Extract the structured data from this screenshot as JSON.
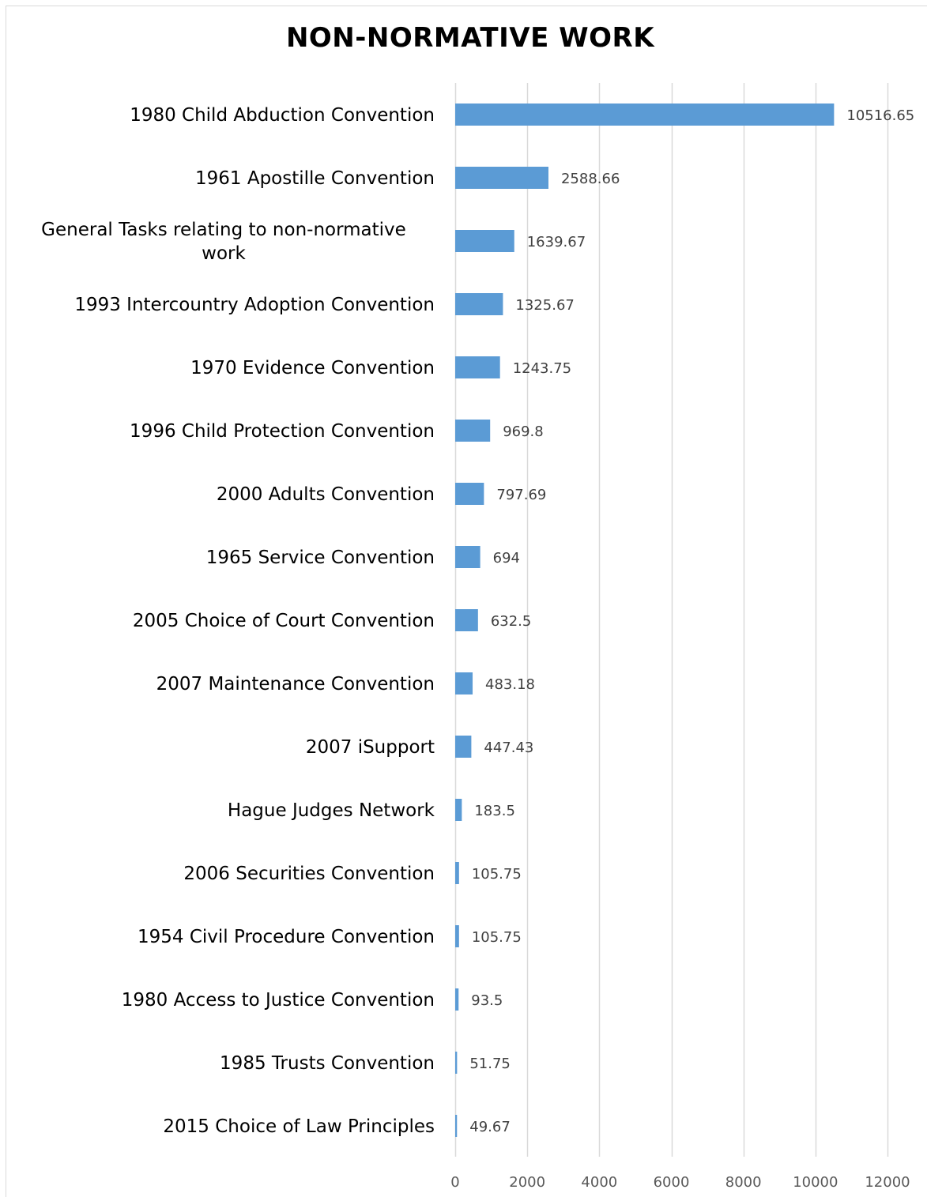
{
  "chart_data": {
    "type": "bar",
    "orientation": "horizontal",
    "title": "NON-NORMATIVE WORK",
    "categories": [
      "1980 Child Abduction Convention",
      "1961 Apostille Convention",
      "General Tasks relating to non-normative work",
      "1993 Intercountry Adoption Convention",
      "1970 Evidence Convention",
      "1996 Child Protection Convention",
      "2000 Adults Convention",
      "1965 Service Convention",
      "2005 Choice of Court Convention",
      "2007 Maintenance Convention",
      "2007 iSupport",
      "Hague Judges Network",
      "2006 Securities Convention",
      "1954 Civil Procedure Convention",
      "1980 Access to Justice Convention",
      "1985 Trusts Convention",
      "2015 Choice of Law Principles"
    ],
    "category_lines": [
      [
        "1980 Child Abduction Convention"
      ],
      [
        "1961 Apostille Convention"
      ],
      [
        "General Tasks relating to non-normative",
        "work"
      ],
      [
        "1993 Intercountry Adoption Convention"
      ],
      [
        "1970 Evidence Convention"
      ],
      [
        "1996 Child Protection Convention"
      ],
      [
        "2000 Adults Convention"
      ],
      [
        "1965 Service Convention"
      ],
      [
        "2005 Choice of Court Convention"
      ],
      [
        "2007 Maintenance Convention"
      ],
      [
        "2007 iSupport"
      ],
      [
        "Hague Judges Network"
      ],
      [
        "2006 Securities Convention"
      ],
      [
        "1954 Civil Procedure Convention"
      ],
      [
        "1980 Access to Justice Convention"
      ],
      [
        "1985 Trusts Convention"
      ],
      [
        "2015 Choice of Law Principles"
      ]
    ],
    "values": [
      10516.65,
      2588.66,
      1639.67,
      1325.67,
      1243.75,
      969.8,
      797.69,
      694,
      632.5,
      483.18,
      447.43,
      183.5,
      105.75,
      105.75,
      93.5,
      51.75,
      49.67
    ],
    "value_labels": [
      "10516.65",
      "2588.66",
      "1639.67",
      "1325.67",
      "1243.75",
      "969.8",
      "797.69",
      "694",
      "632.5",
      "483.18",
      "447.43",
      "183.5",
      "105.75",
      "105.75",
      "93.5",
      "51.75",
      "49.67"
    ],
    "xlim": [
      0,
      12000
    ],
    "xticks": [
      0,
      2000,
      4000,
      6000,
      8000,
      10000,
      12000
    ],
    "xtick_labels": [
      "0",
      "2000",
      "4000",
      "6000",
      "8000",
      "10000",
      "12000"
    ],
    "grid": true,
    "legend": false,
    "bar_color": "#5b9bd5",
    "grid_color": "#d9d9d9"
  }
}
